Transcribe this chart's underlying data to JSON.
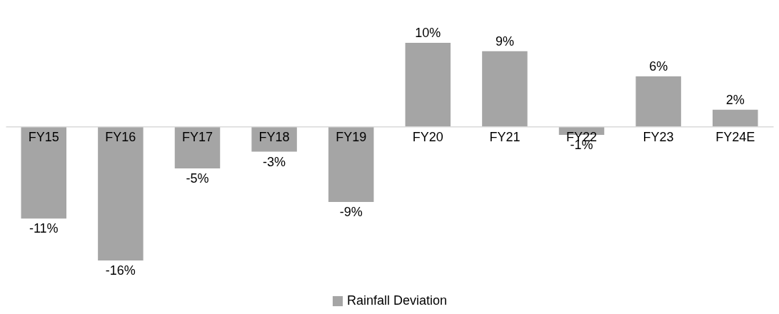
{
  "chart_data": {
    "type": "bar",
    "categories": [
      "FY15",
      "FY16",
      "FY17",
      "FY18",
      "FY19",
      "FY20",
      "FY21",
      "FY22",
      "FY23",
      "FY24E"
    ],
    "series": [
      {
        "name": "Rainfall Deviation",
        "color": "#a5a5a5",
        "values": [
          -11,
          -16,
          -5,
          -3,
          -9,
          10,
          9,
          -1,
          6,
          2
        ],
        "value_labels": [
          "-11%",
          "-16%",
          "-5%",
          "-3%",
          "-9%",
          "10%",
          "9%",
          "-1%",
          "6%",
          "2%"
        ]
      }
    ],
    "legend": "bottom",
    "grid": false
  }
}
